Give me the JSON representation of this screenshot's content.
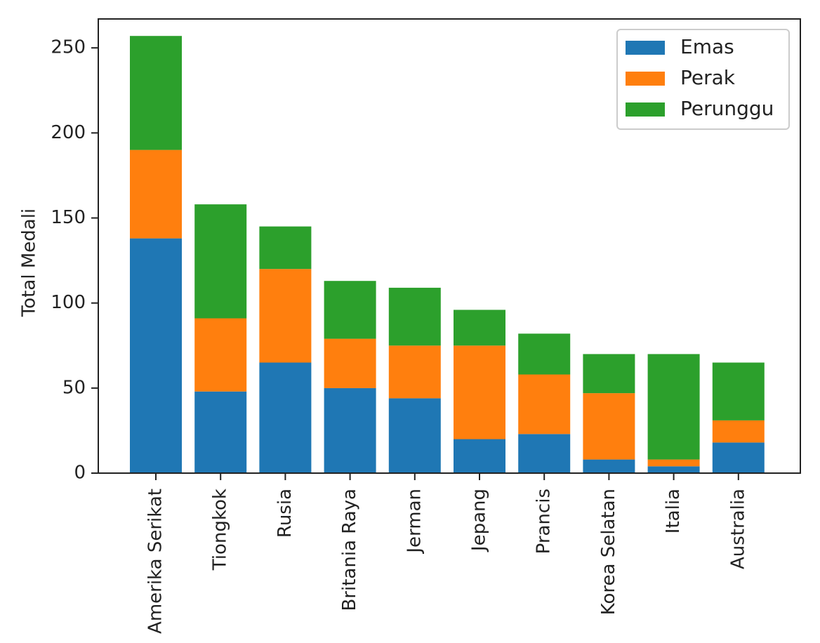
{
  "chart_data": {
    "type": "bar",
    "stacked": true,
    "title": "",
    "xlabel": "",
    "ylabel": "Total Medali",
    "ylim": [
      0,
      267
    ],
    "yticks": [
      0,
      50,
      100,
      150,
      200,
      250
    ],
    "grid": false,
    "legend_position": "top-right",
    "categories": [
      "Amerika Serikat",
      "Tiongkok",
      "Rusia",
      "Britania Raya",
      "Jerman",
      "Jepang",
      "Prancis",
      "Korea Selatan",
      "Italia",
      "Australia"
    ],
    "series": [
      {
        "name": "Emas",
        "color": "#1f77b4",
        "values": [
          138,
          48,
          65,
          50,
          44,
          20,
          23,
          8,
          4,
          18
        ]
      },
      {
        "name": "Perak",
        "color": "#ff7f0e",
        "values": [
          52,
          43,
          55,
          29,
          31,
          55,
          35,
          39,
          4,
          13
        ]
      },
      {
        "name": "Perunggu",
        "color": "#2ca02c",
        "values": [
          67,
          67,
          25,
          34,
          34,
          21,
          24,
          23,
          62,
          34
        ]
      }
    ]
  }
}
